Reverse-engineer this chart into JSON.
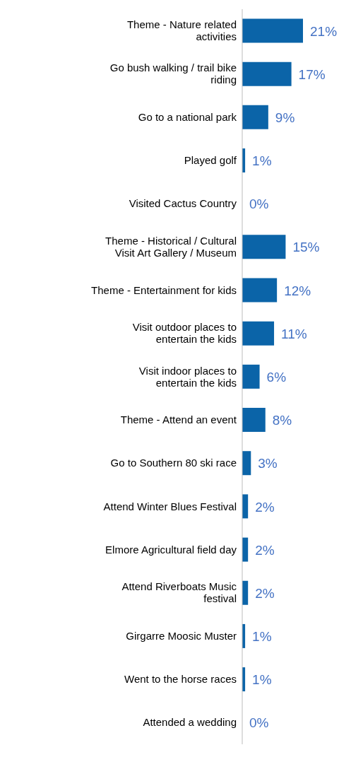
{
  "chart_data": {
    "type": "bar",
    "orientation": "horizontal",
    "categories": [
      "Theme - Nature related activities",
      "Go bush walking / trail bike riding",
      "Go to a national park",
      "Played golf",
      "Visited Cactus Country",
      "Theme - Historical / Cultural Visit Art Gallery / Museum",
      "Theme - Entertainment for kids",
      "Visit outdoor places to entertain the kids",
      "Visit indoor places to entertain the kids",
      "Theme - Attend an event",
      "Go to Southern 80 ski race",
      "Attend Winter Blues Festival",
      "Elmore Agricultural field day",
      "Attend Riverboats Music festival",
      "Girgarre Moosic Muster",
      "Went to the horse races",
      "Attended a wedding"
    ],
    "values": [
      21,
      17,
      9,
      1,
      0,
      15,
      12,
      11,
      6,
      8,
      3,
      2,
      2,
      2,
      1,
      1,
      0
    ],
    "value_labels": [
      "21%",
      "17%",
      "9%",
      "1%",
      "0%",
      "15%",
      "12%",
      "11%",
      "6%",
      "8%",
      "3%",
      "2%",
      "2%",
      "2%",
      "1%",
      "1%",
      "0%"
    ],
    "color": "#0b64a8",
    "grid": false,
    "legend": false
  }
}
